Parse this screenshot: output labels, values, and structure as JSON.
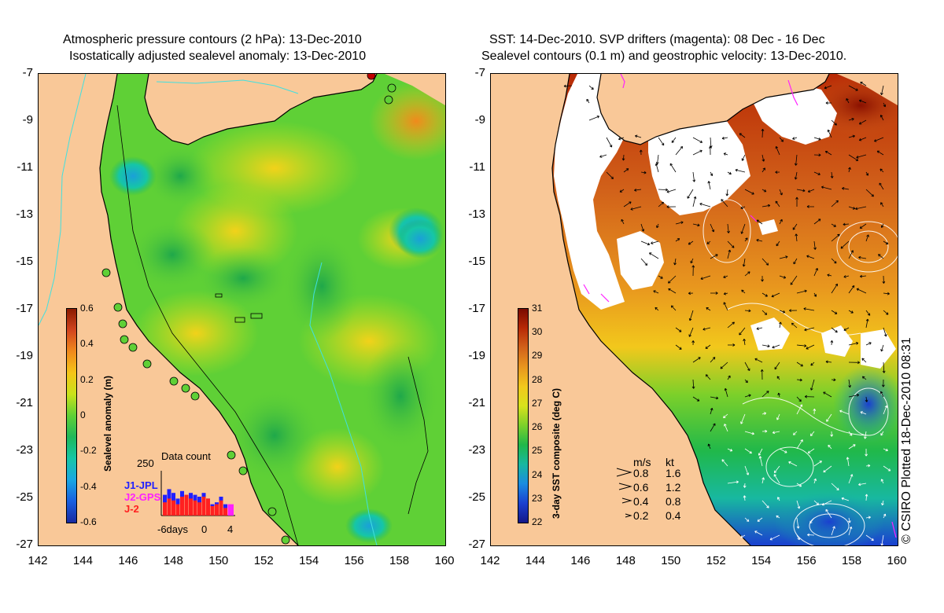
{
  "left_panel": {
    "title_line1": "Atmospheric pressure contours (2 hPa): 13-Dec-2010",
    "title_line2": "Isostatically adjusted sealevel anomaly: 13-Dec-2010",
    "colorbar": {
      "title": "Sealevel anomaly (m)",
      "labels": [
        "0.6",
        "0.4",
        "0.2",
        "0",
        "-0.2",
        "-0.4",
        "-0.6"
      ],
      "colors": [
        "#8b1a00",
        "#d2451e",
        "#f08a1c",
        "#f5c518",
        "#c9e21a",
        "#5fd036",
        "#1fb85a",
        "#16c6a6",
        "#1aa7e2",
        "#1a5fe0",
        "#1a2aa0"
      ]
    },
    "inset": {
      "top_value": "250",
      "title": "Data count",
      "series": [
        {
          "label": "J1-JPL",
          "color": "#2020ff"
        },
        {
          "label": "J2-GPS",
          "color": "#ff20ff"
        },
        {
          "label": "J-2",
          "color": "#ff2020"
        }
      ],
      "x_labels": [
        "-6days",
        "0",
        "4"
      ],
      "blue_counts": [
        0.55,
        0.7,
        0.6,
        0.45,
        0.65,
        0.5,
        0.6,
        0.55,
        0.5,
        0.6,
        0.45,
        0.3,
        0.35,
        0.5,
        0.3,
        0.2
      ],
      "red_counts": [
        0.35,
        0.45,
        0.4,
        0.3,
        0.5,
        0.55,
        0.45,
        0.4,
        0.35,
        0.5,
        0.45,
        0.25,
        0.3,
        0.4,
        0.2,
        0.0
      ]
    }
  },
  "right_panel": {
    "title_line1": "SST: 14-Dec-2010. SVP drifters (magenta): 08 Dec - 16 Dec",
    "title_line2": "Sealevel contours (0.1 m) and geostrophic velocity: 13-Dec-2010.",
    "colorbar": {
      "title": "3-day SST composite (deg C)",
      "labels": [
        "31",
        "30",
        "29",
        "28",
        "27",
        "26",
        "25",
        "24",
        "23",
        "22"
      ],
      "colors": [
        "#7a0a00",
        "#b82a06",
        "#d2621a",
        "#e8961e",
        "#f2c81c",
        "#d8e21c",
        "#7cd02a",
        "#20b84a",
        "#18b8a0",
        "#1a8ce0",
        "#1a40d0",
        "#141888"
      ]
    },
    "velocity_legend": {
      "header_ms": "m/s",
      "header_kt": "kt",
      "rows": [
        {
          "ms": "0.8",
          "kt": "1.6"
        },
        {
          "ms": "0.6",
          "kt": "1.2"
        },
        {
          "ms": "0.4",
          "kt": "0.8"
        },
        {
          "ms": "0.2",
          "kt": "0.4"
        }
      ]
    }
  },
  "axes": {
    "lat_labels": [
      "-7",
      "-9",
      "-11",
      "-13",
      "-15",
      "-17",
      "-19",
      "-21",
      "-23",
      "-25",
      "-27"
    ],
    "lon_labels": [
      "142",
      "144",
      "146",
      "148",
      "150",
      "152",
      "154",
      "156",
      "158",
      "160"
    ]
  },
  "credit": "© CSIRO Plotted 18-Dec-2010 08:31",
  "colors": {
    "land": "#f9c898",
    "sst_nodata": "#ffffff"
  }
}
